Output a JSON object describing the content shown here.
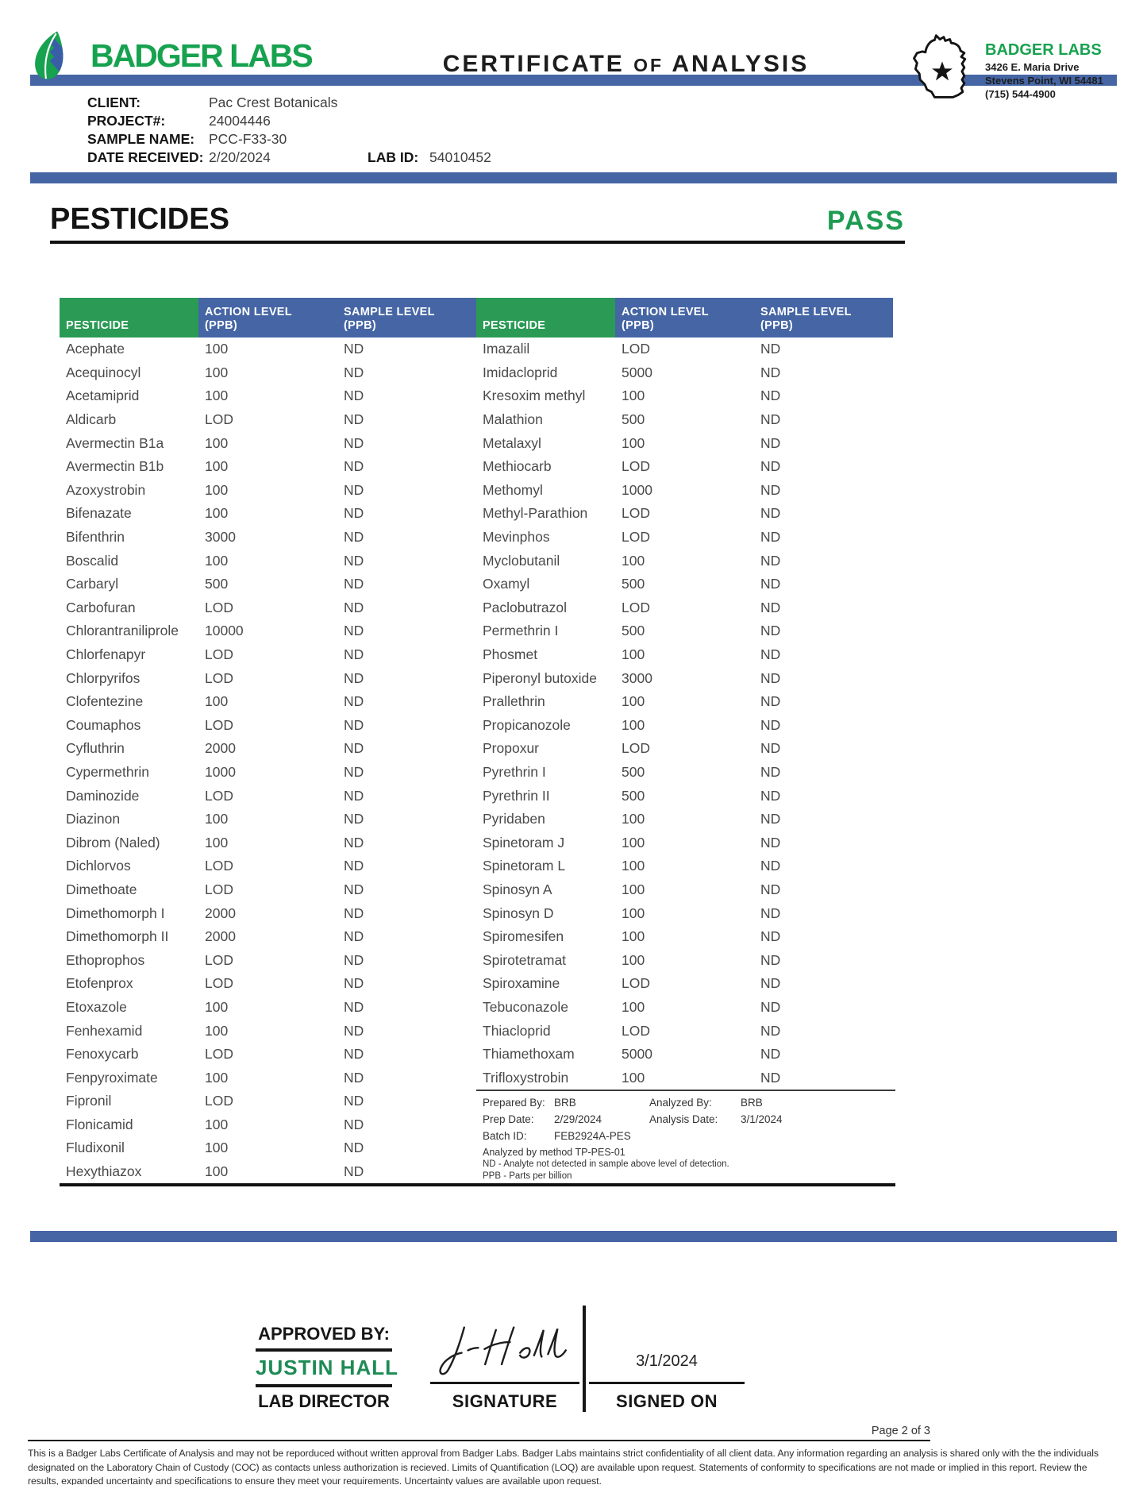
{
  "colors": {
    "blue": "#4565A4",
    "green": "#1E9B52",
    "brand_green": "#17A24F"
  },
  "header": {
    "brand": "BADGER LABS",
    "title_part1": "CERTIFICATE",
    "title_part2": "OF",
    "title_part3": "ANALYSIS",
    "lab_info": {
      "name": "BADGER LABS",
      "address_line1": "3426 E. Maria Drive",
      "address_line2": "Stevens Point, WI 54481",
      "phone": "(715) 544-4900"
    }
  },
  "sample_info": {
    "client_label": "CLIENT:",
    "client": "Pac Crest Botanicals",
    "project_label": "PROJECT#:",
    "project": "24004446",
    "sample_name_label": "SAMPLE NAME:",
    "sample_name": "PCC-F33-30",
    "date_received_label": "DATE RECEIVED:",
    "date_received": "2/20/2024",
    "lab_id_label": "LAB ID:",
    "lab_id": "54010452"
  },
  "section": {
    "title": "PESTICIDES",
    "status": "PASS"
  },
  "table": {
    "headers": {
      "pesticide": "PESTICIDE",
      "action_line1": "ACTION LEVEL",
      "action_line2": "(PPB)",
      "sample_line1": "SAMPLE LEVEL",
      "sample_line2": "(PPB)"
    },
    "left_rows": [
      {
        "name": "Acephate",
        "action": "100",
        "sample": "ND"
      },
      {
        "name": "Acequinocyl",
        "action": "100",
        "sample": "ND"
      },
      {
        "name": "Acetamiprid",
        "action": "100",
        "sample": "ND"
      },
      {
        "name": "Aldicarb",
        "action": "LOD",
        "sample": "ND"
      },
      {
        "name": "Avermectin B1a",
        "action": "100",
        "sample": "ND"
      },
      {
        "name": "Avermectin B1b",
        "action": "100",
        "sample": "ND"
      },
      {
        "name": "Azoxystrobin",
        "action": "100",
        "sample": "ND"
      },
      {
        "name": "Bifenazate",
        "action": "100",
        "sample": "ND"
      },
      {
        "name": "Bifenthrin",
        "action": "3000",
        "sample": "ND"
      },
      {
        "name": "Boscalid",
        "action": "100",
        "sample": "ND"
      },
      {
        "name": "Carbaryl",
        "action": "500",
        "sample": "ND"
      },
      {
        "name": "Carbofuran",
        "action": "LOD",
        "sample": "ND"
      },
      {
        "name": "Chlorantraniliprole",
        "action": "10000",
        "sample": "ND"
      },
      {
        "name": "Chlorfenapyr",
        "action": "LOD",
        "sample": "ND"
      },
      {
        "name": "Chlorpyrifos",
        "action": "LOD",
        "sample": "ND"
      },
      {
        "name": "Clofentezine",
        "action": "100",
        "sample": "ND"
      },
      {
        "name": "Coumaphos",
        "action": "LOD",
        "sample": "ND"
      },
      {
        "name": "Cyfluthrin",
        "action": "2000",
        "sample": "ND"
      },
      {
        "name": "Cypermethrin",
        "action": "1000",
        "sample": "ND"
      },
      {
        "name": "Daminozide",
        "action": "LOD",
        "sample": "ND"
      },
      {
        "name": "Diazinon",
        "action": "100",
        "sample": "ND"
      },
      {
        "name": "Dibrom (Naled)",
        "action": "100",
        "sample": "ND"
      },
      {
        "name": "Dichlorvos",
        "action": "LOD",
        "sample": "ND"
      },
      {
        "name": "Dimethoate",
        "action": "LOD",
        "sample": "ND"
      },
      {
        "name": "Dimethomorph I",
        "action": "2000",
        "sample": "ND"
      },
      {
        "name": "Dimethomorph II",
        "action": "2000",
        "sample": "ND"
      },
      {
        "name": "Ethoprophos",
        "action": "LOD",
        "sample": "ND"
      },
      {
        "name": "Etofenprox",
        "action": "LOD",
        "sample": "ND"
      },
      {
        "name": "Etoxazole",
        "action": "100",
        "sample": "ND"
      },
      {
        "name": "Fenhexamid",
        "action": "100",
        "sample": "ND"
      },
      {
        "name": "Fenoxycarb",
        "action": "LOD",
        "sample": "ND"
      },
      {
        "name": "Fenpyroximate",
        "action": "100",
        "sample": "ND"
      },
      {
        "name": "Fipronil",
        "action": "LOD",
        "sample": "ND"
      },
      {
        "name": "Flonicamid",
        "action": "100",
        "sample": "ND"
      },
      {
        "name": "Fludixonil",
        "action": "100",
        "sample": "ND"
      },
      {
        "name": "Hexythiazox",
        "action": "100",
        "sample": "ND"
      }
    ],
    "right_rows": [
      {
        "name": "Imazalil",
        "action": "LOD",
        "sample": "ND"
      },
      {
        "name": "Imidacloprid",
        "action": "5000",
        "sample": "ND"
      },
      {
        "name": "Kresoxim methyl",
        "action": "100",
        "sample": "ND"
      },
      {
        "name": "Malathion",
        "action": "500",
        "sample": "ND"
      },
      {
        "name": "Metalaxyl",
        "action": "100",
        "sample": "ND"
      },
      {
        "name": "Methiocarb",
        "action": "LOD",
        "sample": "ND"
      },
      {
        "name": "Methomyl",
        "action": "1000",
        "sample": "ND"
      },
      {
        "name": "Methyl-Parathion",
        "action": "LOD",
        "sample": "ND"
      },
      {
        "name": "Mevinphos",
        "action": "LOD",
        "sample": "ND"
      },
      {
        "name": "Myclobutanil",
        "action": "100",
        "sample": "ND"
      },
      {
        "name": "Oxamyl",
        "action": "500",
        "sample": "ND"
      },
      {
        "name": "Paclobutrazol",
        "action": "LOD",
        "sample": "ND"
      },
      {
        "name": "Permethrin I",
        "action": "500",
        "sample": "ND"
      },
      {
        "name": "Phosmet",
        "action": "100",
        "sample": "ND"
      },
      {
        "name": "Piperonyl butoxide",
        "action": "3000",
        "sample": "ND"
      },
      {
        "name": "Prallethrin",
        "action": "100",
        "sample": "ND"
      },
      {
        "name": "Propicanozole",
        "action": "100",
        "sample": "ND"
      },
      {
        "name": "Propoxur",
        "action": "LOD",
        "sample": "ND"
      },
      {
        "name": "Pyrethrin I",
        "action": "500",
        "sample": "ND"
      },
      {
        "name": "Pyrethrin II",
        "action": "500",
        "sample": "ND"
      },
      {
        "name": "Pyridaben",
        "action": "100",
        "sample": "ND"
      },
      {
        "name": "Spinetoram J",
        "action": "100",
        "sample": "ND"
      },
      {
        "name": "Spinetoram L",
        "action": "100",
        "sample": "ND"
      },
      {
        "name": "Spinosyn A",
        "action": "100",
        "sample": "ND"
      },
      {
        "name": "Spinosyn D",
        "action": "100",
        "sample": "ND"
      },
      {
        "name": "Spiromesifen",
        "action": "100",
        "sample": "ND"
      },
      {
        "name": "Spirotetramat",
        "action": "100",
        "sample": "ND"
      },
      {
        "name": "Spiroxamine",
        "action": "LOD",
        "sample": "ND"
      },
      {
        "name": "Tebuconazole",
        "action": "100",
        "sample": "ND"
      },
      {
        "name": "Thiacloprid",
        "action": "LOD",
        "sample": "ND"
      },
      {
        "name": "Thiamethoxam",
        "action": "5000",
        "sample": "ND"
      },
      {
        "name": "Trifloxystrobin",
        "action": "100",
        "sample": "ND"
      }
    ]
  },
  "analysis_meta": {
    "prepared_by_label": "Prepared By:",
    "prepared_by": "BRB",
    "prep_date_label": "Prep Date:",
    "prep_date": "2/29/2024",
    "batch_id_label": "Batch ID:",
    "batch_id": "FEB2924A-PES",
    "analyzed_by_label": "Analyzed By:",
    "analyzed_by": "BRB",
    "analysis_date_label": "Analysis Date:",
    "analysis_date": "3/1/2024",
    "method_note": "Analyzed by method TP-PES-01",
    "nd_note": "ND - Analyte not detected in sample above level of detection.",
    "ppb_note": "PPB - Parts per billion"
  },
  "approval": {
    "approved_by_label": "APPROVED BY:",
    "approver_name": "JUSTIN HALL",
    "approver_title": "LAB DIRECTOR",
    "signature_label": "SIGNATURE",
    "signed_on_label": "SIGNED ON",
    "signed_on_date": "3/1/2024"
  },
  "footer": {
    "page_label": "Page 2 of 3",
    "disclaimer": "This is a Badger Labs Certificate of Analysis and may not be reporduced without written approval from Badger Labs. Badger Labs maintains strict confidentiality of all client data. Any information regarding an analysis is shared only with the the individuals designated on the Laboratory Chain of Custody (COC) as contacts unless authorization is recieved. Limits of Quantification (LOQ) are available upon request. Statements of conformity to specifications are not made or implied in this report. Review the results, expanded uncertainty and specifications to ensure they meet your requirements. Uncertainty values are available upon request."
  }
}
